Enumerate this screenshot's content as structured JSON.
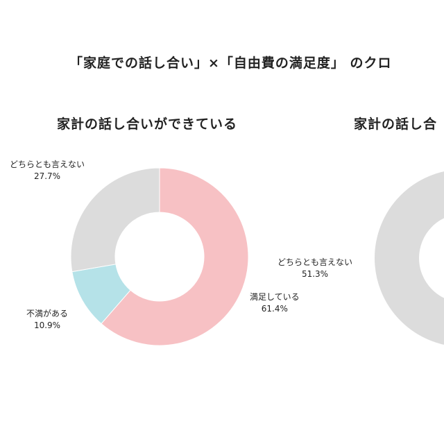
{
  "page": {
    "title": "「家庭での話し合い」×「自由費の満足度」 のクロ"
  },
  "chart_data": [
    {
      "type": "pie",
      "title": "家計の話し合いができている",
      "slices": [
        {
          "label": "満足している",
          "value": 61.4,
          "value_text": "61.4%",
          "color": "#f7c1c4"
        },
        {
          "label": "不満がある",
          "value": 10.9,
          "value_text": "10.9%",
          "color": "#b5e2e8"
        },
        {
          "label": "どちらとも言えない",
          "value": 27.7,
          "value_text": "27.7%",
          "color": "#dcdcdc"
        }
      ]
    },
    {
      "type": "pie",
      "title": "家計の話し合",
      "slices": [
        {
          "label": "どちらとも言えない",
          "value": 51.3,
          "value_text": "51.3%",
          "color": "#dcdcdc"
        }
      ]
    }
  ]
}
